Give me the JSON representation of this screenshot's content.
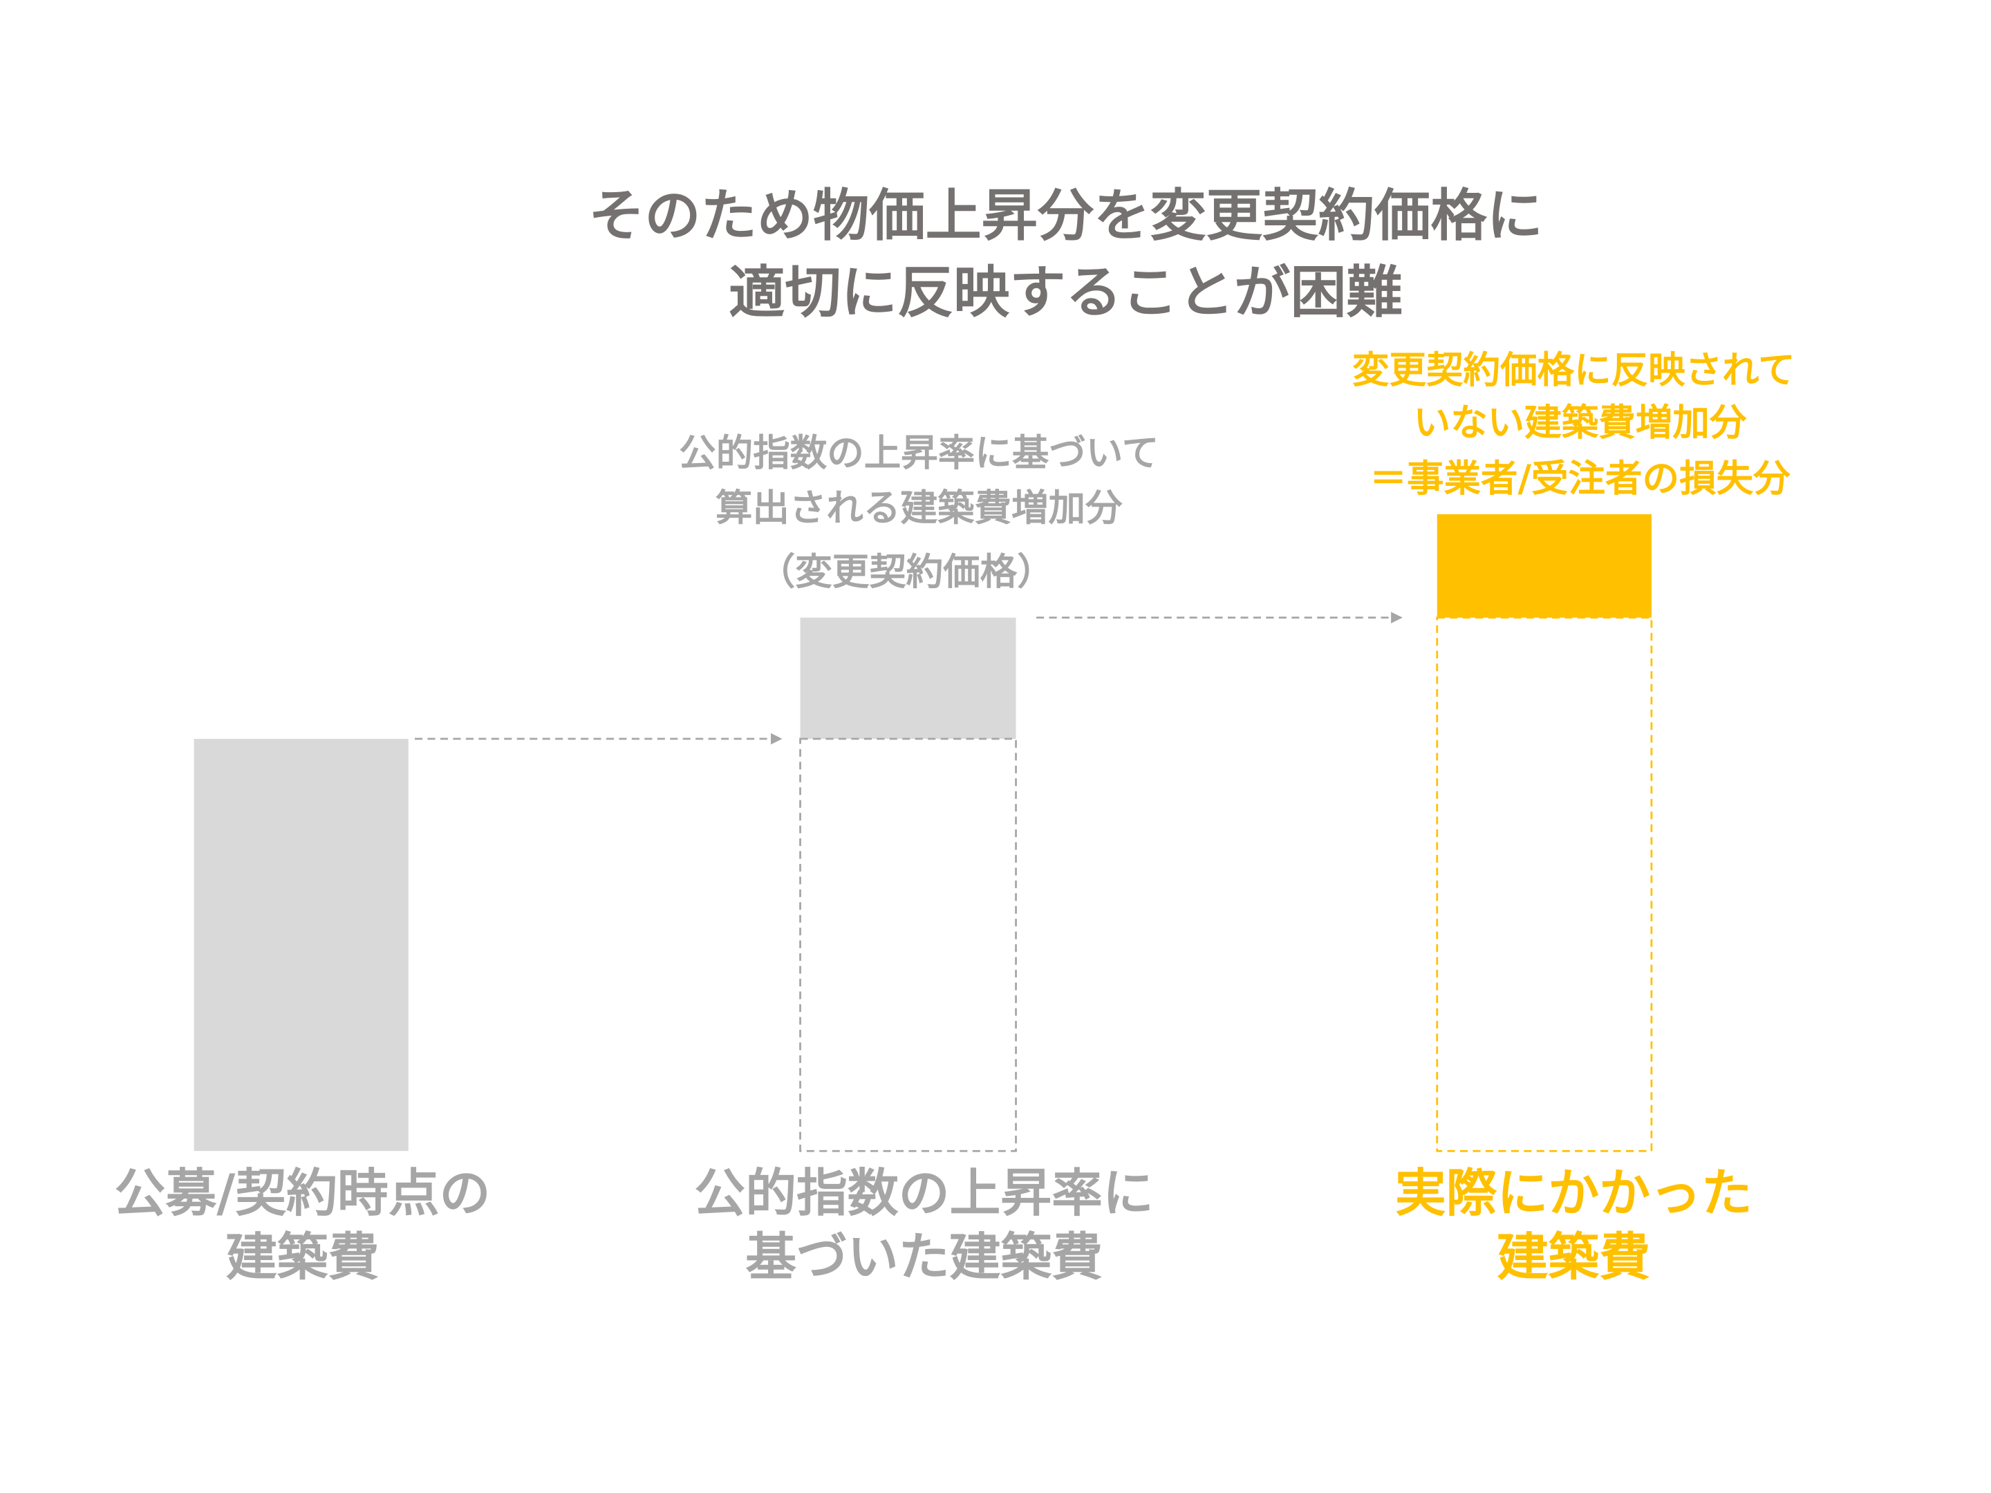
{
  "title": {
    "lines": [
      "そのため物価上昇分を変更契約価格に",
      "適切に反映することが困難"
    ]
  },
  "annotations": [
    {
      "lines": [
        "公的指数の上昇率に基づいて",
        "算出される建築費増加分",
        "（変更契約価格）"
      ]
    },
    {
      "lines": [
        "変更契約価格に反映されて",
        "いない建築費増加分",
        "＝事業者/受注者の損失分"
      ]
    }
  ],
  "columns": [
    {
      "label_lines": [
        "公募/契約時点の",
        "建築費"
      ]
    },
    {
      "label_lines": [
        "公的指数の上昇率に",
        "基づいた建築費"
      ]
    },
    {
      "label_lines": [
        "実際にかかった",
        "建築費"
      ]
    }
  ]
}
